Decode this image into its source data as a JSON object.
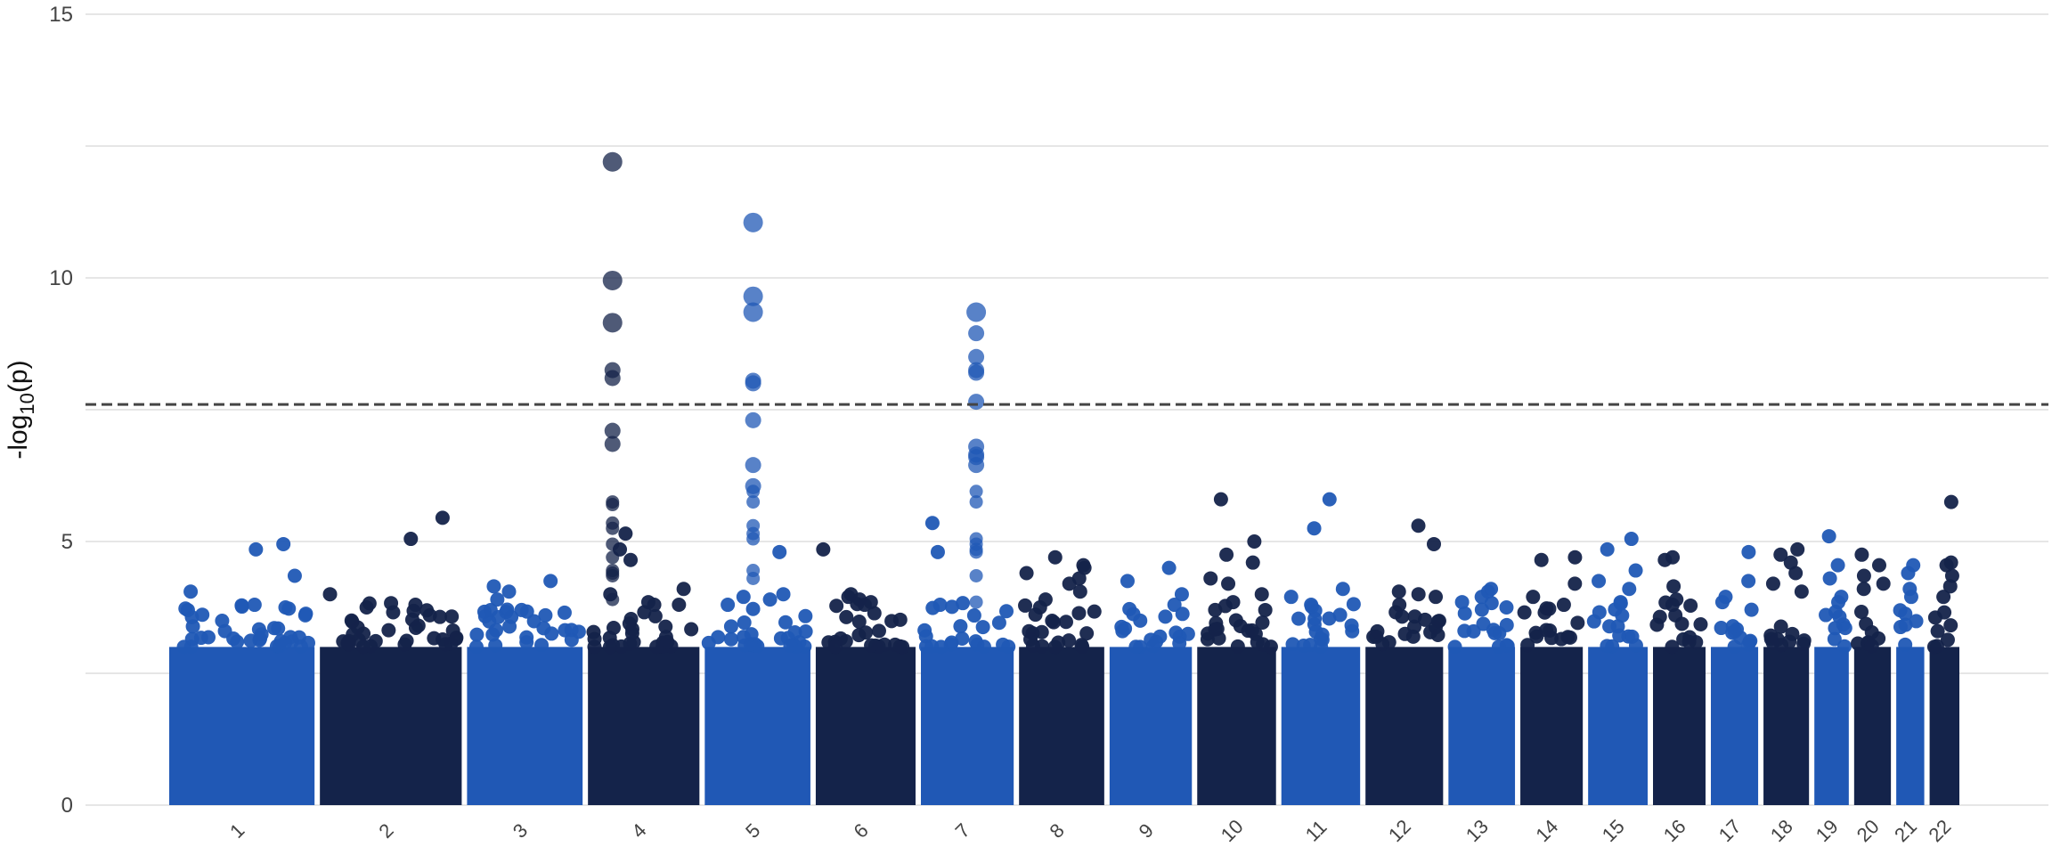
{
  "chart_data": {
    "type": "scatter",
    "subtype": "manhattan",
    "title": "",
    "xlabel": "",
    "ylabel": "-log10(p)",
    "ylabel_parts": {
      "base": "-log",
      "sub": "10",
      "tail": "(p)"
    },
    "ylim": [
      0,
      15
    ],
    "yticks": [
      0,
      5,
      10,
      15
    ],
    "grid": "horizontal",
    "significance_threshold": 7.6,
    "colors": {
      "light": "#2058B5",
      "dark": "#14234A",
      "threshold": "#444444",
      "grid": "#E6E6E6"
    },
    "background_ceiling": 3.0,
    "chromosomes": [
      {
        "label": "1",
        "length": 249,
        "color": "light",
        "hits": [
          4.95,
          4.85,
          4.35,
          4.05,
          3.8,
          3.75,
          3.7,
          3.6
        ]
      },
      {
        "label": "2",
        "length": 243,
        "color": "dark",
        "hits": [
          5.45,
          5.05,
          4.0,
          3.8,
          3.75,
          3.6,
          3.5
        ]
      },
      {
        "label": "3",
        "length": 198,
        "color": "light",
        "hits": [
          4.25,
          4.15,
          4.05,
          3.9,
          3.7,
          3.6
        ]
      },
      {
        "label": "4",
        "length": 191,
        "color": "dark",
        "peak_hits": [
          12.2,
          9.95,
          9.15,
          8.25,
          8.1,
          7.1,
          6.85,
          5.75,
          5.7,
          5.35,
          5.25,
          4.95,
          4.7,
          4.45,
          4.4,
          4.35,
          3.9
        ],
        "hits": [
          5.15,
          4.85,
          4.65,
          4.1,
          4.0,
          3.85,
          3.8
        ]
      },
      {
        "label": "5",
        "length": 181,
        "color": "light",
        "peak_hits": [
          11.05,
          9.65,
          9.35,
          8.05,
          8.0,
          7.3,
          6.45,
          6.05,
          5.95,
          5.75,
          5.3,
          5.15,
          5.05,
          4.45,
          4.3
        ],
        "hits": [
          4.8,
          4.0,
          3.95,
          3.9,
          3.8
        ]
      },
      {
        "label": "6",
        "length": 171,
        "color": "dark",
        "hits": [
          4.85,
          4.0,
          3.95,
          3.9,
          3.85,
          3.8
        ]
      },
      {
        "label": "7",
        "length": 159,
        "color": "light",
        "peak_hits": [
          9.35,
          8.95,
          8.5,
          8.25,
          8.2,
          7.65,
          6.8,
          6.65,
          6.6,
          6.45,
          5.95,
          5.75,
          5.05,
          4.95,
          4.85,
          4.8,
          4.35,
          3.85
        ],
        "hits": [
          5.35,
          4.8,
          3.8
        ]
      },
      {
        "label": "8",
        "length": 146,
        "color": "dark",
        "hits": [
          4.7,
          4.55,
          4.5,
          4.4,
          4.3,
          4.2,
          4.05,
          3.9,
          3.75
        ]
      },
      {
        "label": "9",
        "length": 141,
        "color": "light",
        "hits": [
          4.5,
          4.25,
          4.0,
          3.8
        ]
      },
      {
        "label": "10",
        "length": 135,
        "color": "dark",
        "hits": [
          5.8,
          5.0,
          4.75,
          4.6,
          4.3,
          4.2,
          4.0,
          3.85,
          3.7
        ]
      },
      {
        "label": "11",
        "length": 135,
        "color": "light",
        "hits": [
          5.8,
          5.25,
          4.1,
          3.95,
          3.8
        ]
      },
      {
        "label": "12",
        "length": 133,
        "color": "dark",
        "hits": [
          5.3,
          4.95,
          4.05,
          4.0,
          3.95,
          3.8
        ]
      },
      {
        "label": "13",
        "length": 114,
        "color": "light",
        "hits": [
          4.1,
          4.05,
          3.95,
          3.85
        ]
      },
      {
        "label": "14",
        "length": 107,
        "color": "dark",
        "hits": [
          4.7,
          4.65,
          4.2,
          3.95,
          3.8
        ]
      },
      {
        "label": "15",
        "length": 102,
        "color": "light",
        "hits": [
          5.05,
          4.85,
          4.45,
          4.25,
          4.1,
          3.85
        ]
      },
      {
        "label": "16",
        "length": 90,
        "color": "dark",
        "hits": [
          4.7,
          4.65,
          4.15,
          3.9,
          3.8
        ]
      },
      {
        "label": "17",
        "length": 81,
        "color": "light",
        "hits": [
          4.8,
          4.25,
          3.95,
          3.85
        ]
      },
      {
        "label": "18",
        "length": 78,
        "color": "dark",
        "hits": [
          4.85,
          4.75,
          4.6,
          4.4,
          4.2,
          4.05
        ]
      },
      {
        "label": "19",
        "length": 59,
        "color": "light",
        "hits": [
          5.1,
          4.55,
          4.3,
          3.95,
          3.85
        ]
      },
      {
        "label": "20",
        "length": 63,
        "color": "dark",
        "hits": [
          4.75,
          4.55,
          4.35,
          4.2,
          4.1
        ]
      },
      {
        "label": "21",
        "length": 48,
        "color": "light",
        "hits": [
          4.55,
          4.4,
          4.1,
          3.95
        ]
      },
      {
        "label": "22",
        "length": 51,
        "color": "dark",
        "hits": [
          5.75,
          4.6,
          4.55,
          4.35,
          4.15,
          3.95
        ]
      }
    ]
  }
}
